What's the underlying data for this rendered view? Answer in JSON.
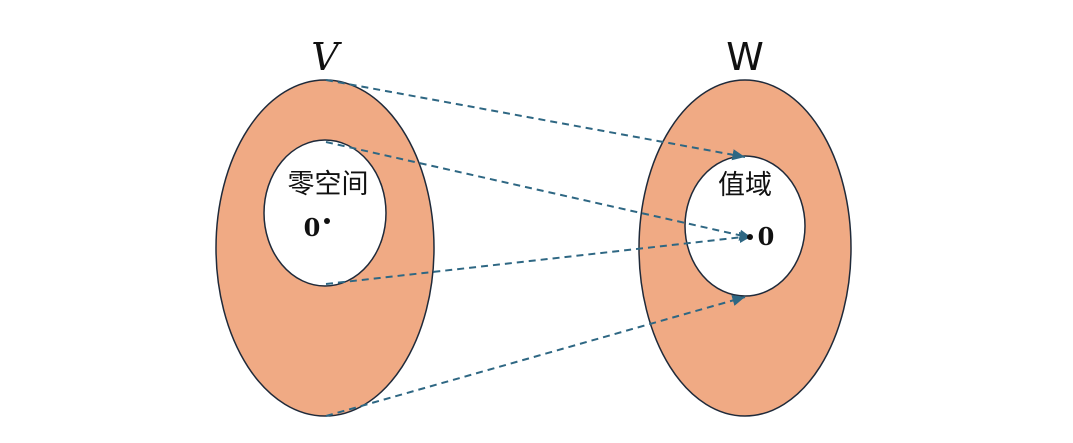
{
  "colors": {
    "set_fill": "#f0aa84",
    "set_stroke": "#1f2a3a",
    "inner_fill": "#ffffff",
    "arrow": "#2e6783",
    "text": "#111111"
  },
  "domain_set": {
    "label": "V",
    "subset_label": "零空间",
    "zero_label": "0"
  },
  "codomain_set": {
    "label": "W",
    "subset_label": "值域",
    "zero_label": "0"
  },
  "arrows_style": "dashed"
}
